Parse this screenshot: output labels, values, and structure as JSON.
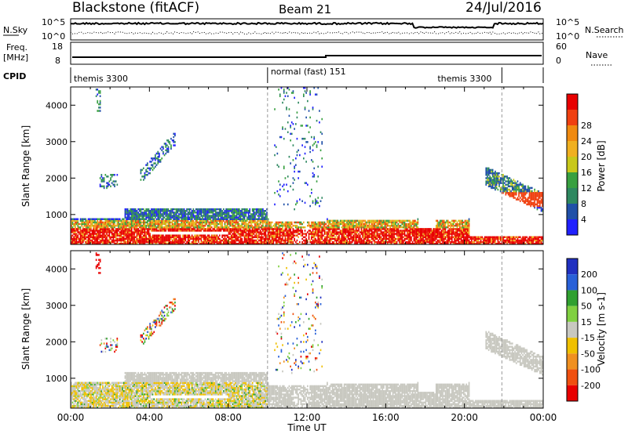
{
  "header": {
    "title": "Blackstone (fitACF)",
    "beam": "Beam 21",
    "date": "24/Jul/2016"
  },
  "top_panels": {
    "nsky_label": "N.Sky",
    "nsearch_label": "N.Search",
    "nsky_ticks": [
      "10^5",
      "10^0"
    ],
    "freq_label": "Freq.",
    "freq_unit": "[MHz]",
    "freq_ticks": [
      "18",
      "8"
    ],
    "nave_label": "Nave",
    "nave_ticks": [
      "60",
      "0"
    ],
    "cpid_label": "CPID",
    "cpid_segments": [
      {
        "label": "themis 3300",
        "start_hour": 0.0,
        "end_hour": 10.0
      },
      {
        "label": "normal (fast) 151",
        "start_hour": 10.0,
        "end_hour": 21.9
      },
      {
        "label": "themis 3300",
        "start_hour": 21.9,
        "end_hour": 24.0
      }
    ]
  },
  "chart_data": [
    {
      "type": "heatmap",
      "title": "",
      "xlabel": "",
      "ylabel": "Slant Range [km]",
      "xlim": [
        0,
        24
      ],
      "ylim": [
        180,
        4500
      ],
      "yticks": [
        1000,
        2000,
        3000,
        4000
      ],
      "colorbar": {
        "label": "Power [dB]",
        "ticks": [
          "4",
          "8",
          "12",
          "16",
          "20",
          "24",
          "28"
        ],
        "colors": [
          "#2020ff",
          "#2050a8",
          "#2e8860",
          "#38a040",
          "#c8c81a",
          "#f0b020",
          "#f08a10",
          "#f04010",
          "#e80000"
        ]
      }
    },
    {
      "type": "heatmap",
      "title": "",
      "xlabel": "Time UT",
      "ylabel": "Slant Range [km]",
      "xlim": [
        0,
        24
      ],
      "ylim": [
        180,
        4500
      ],
      "yticks": [
        1000,
        2000,
        3000,
        4000
      ],
      "xticks": [
        "00:00",
        "04:00",
        "08:00",
        "12:00",
        "16:00",
        "20:00",
        "00:00"
      ],
      "colorbar": {
        "label": "Velocity [m s-1]",
        "ticks": [
          "200",
          "100",
          "50",
          "15",
          "-15",
          "-50",
          "-100",
          "-200"
        ],
        "colors": [
          "#2030c0",
          "#2860d8",
          "#30a030",
          "#80d040",
          "#c8c8c0",
          "#f0c000",
          "#f09020",
          "#f05010",
          "#e80000"
        ]
      }
    }
  ]
}
